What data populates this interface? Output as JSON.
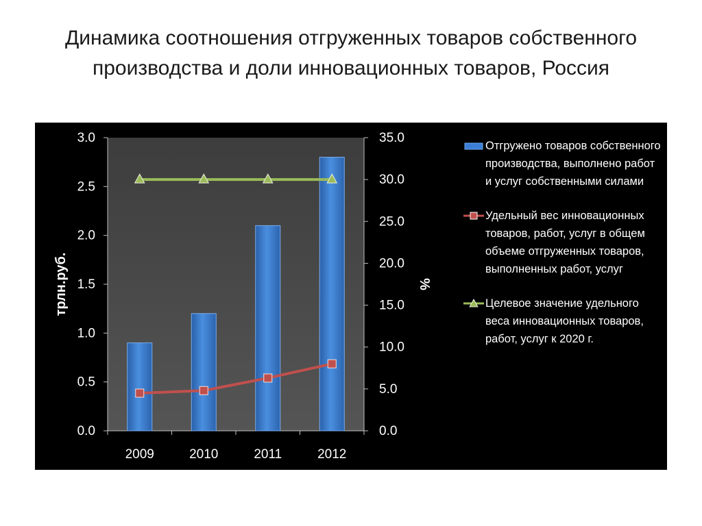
{
  "title": "Динамика соотношения отгруженных товаров собственного производства и доли инновационных товаров, Россия",
  "chart_data": {
    "type": "bar",
    "categories": [
      "2009",
      "2010",
      "2011",
      "2012"
    ],
    "series": [
      {
        "name": "Отгружено товаров собственного производства, выполнено работ и услуг собственными силами",
        "kind": "bar",
        "axis": "left",
        "color": "#3a7fd5",
        "values": [
          0.9,
          1.2,
          2.1,
          2.8
        ]
      },
      {
        "name": "Удельный вес инновационных товаров, работ, услуг в общем объеме отгруженных товаров, выполненных работ, услуг",
        "kind": "line",
        "axis": "right",
        "color": "#c0504d",
        "marker": "square",
        "values": [
          4.5,
          4.8,
          6.3,
          8.0
        ]
      },
      {
        "name": "Целевое значение удельного веса инновационных товаров, работ, услуг к 2020 г.",
        "kind": "line",
        "axis": "right",
        "color": "#9bbb59",
        "marker": "triangle",
        "values": [
          30.0,
          30.0,
          30.0,
          30.0
        ]
      }
    ],
    "ylabel": "трлн.руб.",
    "y2label": "%",
    "ylim": [
      0,
      3.0
    ],
    "y2lim": [
      0,
      35.0
    ],
    "yticks": [
      "0.0",
      "0.5",
      "1.0",
      "1.5",
      "2.0",
      "2.5",
      "3.0"
    ],
    "y2ticks": [
      "0.0",
      "5.0",
      "10.0",
      "15.0",
      "20.0",
      "25.0",
      "30.0",
      "35.0"
    ],
    "legend_position": "right",
    "grid": false
  }
}
